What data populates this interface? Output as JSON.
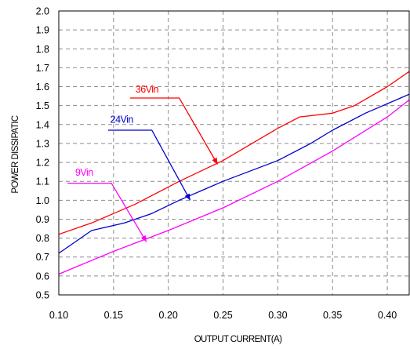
{
  "chart_data": {
    "type": "line",
    "title": "",
    "xlabel": "OUTPUT CURRENT(A)",
    "ylabel": "POWER DISSIPATIC",
    "xlim": [
      0.1,
      0.42
    ],
    "ylim": [
      0.5,
      2.0
    ],
    "x_ticks": [
      "0.10",
      "0.15",
      "0.20",
      "0.25",
      "0.30",
      "0.35",
      "0.40"
    ],
    "y_ticks": [
      "0.5",
      "0.6",
      "0.7",
      "0.8",
      "0.9",
      "1.0",
      "1.1",
      "1.2",
      "1.3",
      "1.4",
      "1.5",
      "1.6",
      "1.7",
      "1.8",
      "1.9",
      "2.0"
    ],
    "grid": true,
    "series": [
      {
        "name": "36Vin",
        "color": "#ff0000",
        "x": [
          0.1,
          0.13,
          0.17,
          0.21,
          0.25,
          0.3,
          0.32,
          0.35,
          0.37,
          0.4,
          0.42
        ],
        "y": [
          0.82,
          0.88,
          0.98,
          1.1,
          1.21,
          1.38,
          1.44,
          1.46,
          1.5,
          1.6,
          1.68
        ],
        "label_x": 0.17,
        "label_y": 1.57,
        "leader": [
          [
            0.165,
            1.54
          ],
          [
            0.21,
            1.54
          ],
          [
            0.245,
            1.19
          ]
        ]
      },
      {
        "name": "24Vin",
        "color": "#0000cc",
        "x": [
          0.1,
          0.12,
          0.13,
          0.16,
          0.185,
          0.21,
          0.25,
          0.3,
          0.33,
          0.35,
          0.38,
          0.42
        ],
        "y": [
          0.72,
          0.8,
          0.84,
          0.88,
          0.93,
          1.0,
          1.1,
          1.21,
          1.3,
          1.37,
          1.46,
          1.56
        ],
        "label_x": 0.147,
        "label_y": 1.41,
        "leader": [
          [
            0.145,
            1.37
          ],
          [
            0.185,
            1.37
          ],
          [
            0.22,
            1.0
          ]
        ]
      },
      {
        "name": "9Vin",
        "color": "#ff00ff",
        "x": [
          0.1,
          0.15,
          0.2,
          0.25,
          0.3,
          0.35,
          0.4,
          0.42
        ],
        "y": [
          0.61,
          0.73,
          0.84,
          0.96,
          1.1,
          1.26,
          1.44,
          1.53
        ],
        "label_x": 0.115,
        "label_y": 1.13,
        "leader": [
          [
            0.108,
            1.09
          ],
          [
            0.148,
            1.09
          ],
          [
            0.18,
            0.78
          ]
        ]
      }
    ]
  }
}
